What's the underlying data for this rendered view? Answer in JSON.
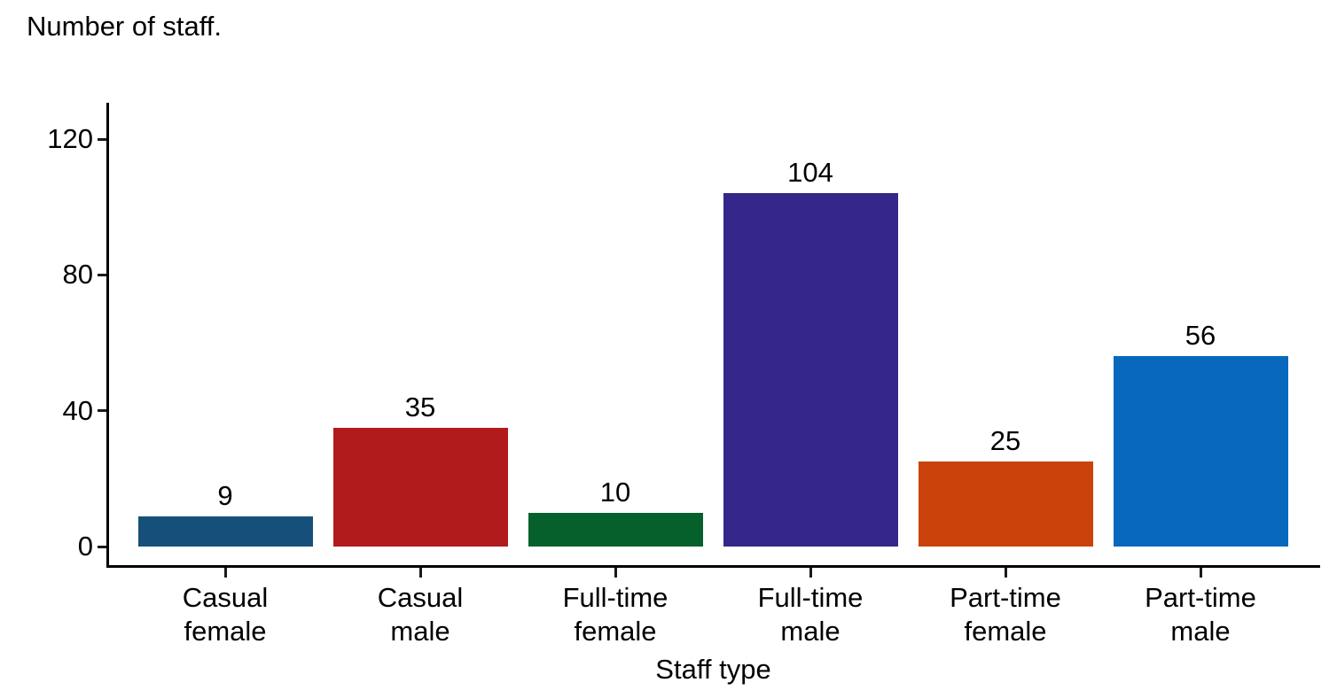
{
  "chart_data": {
    "type": "bar",
    "title": "Number of staff.",
    "xlabel": "Staff type",
    "ylabel": "",
    "categories": [
      "Casual female",
      "Casual male",
      "Full-time female",
      "Full-time male",
      "Part-time female",
      "Part-time male"
    ],
    "values": [
      9,
      35,
      10,
      104,
      25,
      56
    ],
    "bar_colors": [
      "#16507A",
      "#B11B1B",
      "#06602C",
      "#342789",
      "#C9430B",
      "#0768BD"
    ],
    "value_labels": [
      "9",
      "35",
      "10",
      "104",
      "25",
      "56"
    ],
    "yticks": [
      0,
      40,
      80,
      120
    ],
    "ylim": [
      0,
      130
    ],
    "grid": false,
    "legend": "none",
    "background_color": "#ffffff",
    "axis_color": "#000000",
    "text_color": "#000000"
  }
}
